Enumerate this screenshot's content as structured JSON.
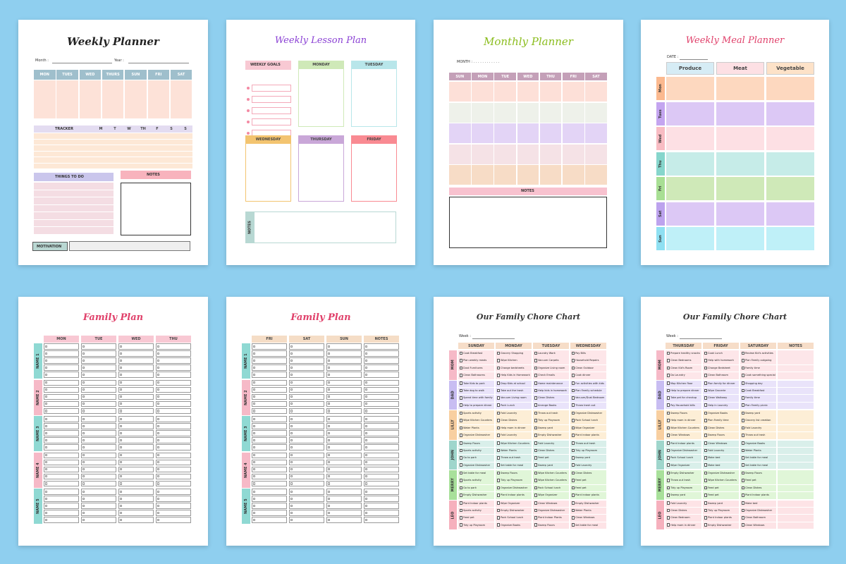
{
  "colors": {
    "bg": "#8fcfef",
    "peach": "#fde2d8",
    "blue": "#9fbfcc",
    "tracker": "#fde8d6",
    "lav": "#d4d0ee",
    "pink": "#f8b3bd",
    "mintgray": "#b8d8d3",
    "green": "#cfe9b8",
    "cyan": "#b8e6ea",
    "gold": "#f3c470",
    "purple": "#c9a7d8",
    "coral": "#f98a92",
    "lilac": "#e6d6ef",
    "lime": "#8bbd1e",
    "mauve": "#c4a0b8",
    "mealpeach": "#fdd8bf",
    "violet": "#dcc8f5",
    "meal_title": "#e0406a",
    "fam_title": "#e0406a",
    "fam_head_pink": "#f8c8d3",
    "fam_head_tan": "#f5ddc6",
    "fam_side_teal": "#8fd9d3",
    "fam_side_pink": "#f6b9c7"
  },
  "weekly_planner": {
    "title": "Weekly Planner",
    "month": "Month :",
    "year": "Year :",
    "days": [
      "MON",
      "TUES",
      "WED",
      "THURS",
      "SUN",
      "FRI",
      "SAT"
    ],
    "tracker": "TRACKER",
    "tracker_days": [
      "M",
      "T",
      "W",
      "TH",
      "F",
      "S",
      "S"
    ],
    "todo": "THINGS TO DO",
    "notes": "NOTES",
    "motivation": "MOTIVATION"
  },
  "lesson_plan": {
    "title": "Weekly Lesson Plan",
    "goals": "WEEKLY GOALS",
    "days": [
      "MONDAY",
      "TUESDAY",
      "WEDNESDAY",
      "THURSDAY",
      "FRIDAY"
    ],
    "notes": "NOTES"
  },
  "monthly_planner": {
    "title": "Monthly Planner",
    "month": "MONTH : . . . . . . . . . . . .",
    "days": [
      "SUN",
      "MON",
      "TUE",
      "WED",
      "THU",
      "FRI",
      "SAT"
    ],
    "notes": "NOTES"
  },
  "meal_planner": {
    "title": "Weekly Meal Planner",
    "date": "DATE :",
    "cols": [
      "Produce",
      "Meat",
      "Vegetable"
    ],
    "days": [
      "Mon",
      "Tues",
      "Wed",
      "Thu",
      "Fri",
      "Sat",
      "Sun"
    ]
  },
  "family_plan_1": {
    "title": "Family Plan",
    "cols": [
      "MON",
      "TUE",
      "WED",
      "THU"
    ],
    "names": [
      "NAME 1",
      "NAME 2",
      "NAME 3",
      "NAME 4",
      "NAME 5"
    ]
  },
  "family_plan_2": {
    "title": "Family Plan",
    "cols": [
      "FRI",
      "SAT",
      "SUN",
      "NOTES"
    ],
    "names": [
      "NAME 1",
      "NAME 2",
      "NAME 3",
      "NAME 4",
      "NAME 5"
    ]
  },
  "chore_1": {
    "title": "Our Family Chore Chart",
    "week": "Week :",
    "cols": [
      "SUNDAY",
      "MONDAY",
      "TUESDAY",
      "WEDNESDAY"
    ],
    "names": [
      "MOM",
      "DAD",
      "LILLY",
      "JOHN",
      "MERRY",
      "LEO"
    ],
    "rows": [
      [
        "Cook Breakfast",
        "Grocery Shopping",
        "Laundry Work",
        "Pay Bills"
      ],
      [
        "Plan weekly meals",
        "Wipe Kitchen",
        "Vacuum Carpets",
        "Household Repairs"
      ],
      [
        "Dust Furnitures",
        "Change bedsheets",
        "Organize Living room",
        "Clean Outdoor"
      ],
      [
        "Clean Bathrooms",
        "Help Kids in Homework",
        "Check Emails",
        "Cook dinner"
      ],
      [
        "Take Kids to park",
        "Drop Kids at school",
        "Home maintenance",
        "Fun activities with kids"
      ],
      [
        "Take dog to walk",
        "Take out the trash",
        "Help kids in homework",
        "Plan Family schedule"
      ],
      [
        "Spend time with family",
        "Vacuum Living room",
        "Clean Dishes",
        "Vacuum/Dust Bedroom"
      ],
      [
        "Help to prepare dinner",
        "Pack Lunch",
        "Arrange Books",
        "Throw trash out"
      ],
      [
        "Sports activity",
        "Fold Laundry",
        "Throw out trash",
        "Organize Dishwasher"
      ],
      [
        "Wipe Kitchen Counters",
        "Clean Dishes",
        "Tidy up Playroom",
        "Pack School lunch"
      ],
      [
        "Water Plants",
        "Help mom in dinner",
        "Sweep yard",
        "Wipe Organizer"
      ],
      [
        "Organize Dishwasher",
        "Fold Laundry",
        "Empty Dishwasher",
        "Plant indoor plants"
      ],
      [
        "Sweep Floors",
        "Wipe Kitchen Counters",
        "Fold Laundry",
        "Throw out trash"
      ],
      [
        "Sports activity",
        "Water Plants",
        "Clean Dishes",
        "Tidy up Playroom"
      ],
      [
        "Go to park",
        "Throw out trash",
        "Feed pet",
        "Sweep yard"
      ],
      [
        "Organize Dishwasher",
        "Set table for meal",
        "Sweep yard",
        "Fold Laundry"
      ],
      [
        "Set table for meal",
        "Sweep Floors",
        "Wipe Kitchen Counters",
        "Clean Dishes"
      ],
      [
        "Sports activity",
        "Tidy up Playroom",
        "Wipe Kitchen Counters",
        "Feed pet"
      ],
      [
        "Go to park",
        "Organize Dishwasher",
        "Pack School lunch",
        "Feed pet"
      ],
      [
        "Empty Dishwasher",
        "Plant Indoor plants",
        "Wipe Organizer",
        "Plant indoor plants"
      ],
      [
        "Plant Indoor plants",
        "Wipe Organizer",
        "Clean Windows",
        "Empty Dishwasher"
      ],
      [
        "Sports activity",
        "Empty Dishwasher",
        "Organize Dishwasher",
        "Water Plants"
      ],
      [
        "Feed pet",
        "Pack School lunch",
        "Plant Indoor Plants",
        "Clean Windows"
      ],
      [
        "Tidy up Playroom",
        "Organize Books",
        "Sweep Floors",
        "Set table for meal"
      ]
    ]
  },
  "chore_2": {
    "title": "Our Family Chore Chart",
    "week": "Week :",
    "cols": [
      "THURSDAY",
      "FRIDAY",
      "SATURDAY",
      "NOTES"
    ],
    "names": [
      "MOM",
      "DAD",
      "LILLY",
      "JOHN",
      "MERRY",
      "LEO"
    ],
    "rows": [
      [
        "Prepare healthy snacks",
        "Cook Lunch",
        "Review Kid's activities"
      ],
      [
        "Clean Bedrooms",
        "Help with homework",
        "Plan Family outgoing"
      ],
      [
        "Clean Kid's Room",
        "Change Bedsheet",
        "Family time"
      ],
      [
        "Do Laundry",
        "Clean Bathroom",
        "Cook something special"
      ],
      [
        "Mop Kitchen floor",
        "Plan family for dinner",
        "Shopping day"
      ],
      [
        "Help to prepare dinner",
        "Wipe Grocerie",
        "Cook Breakfast"
      ],
      [
        "Take pet for checkup",
        "Clean Walkway",
        "Family time"
      ],
      [
        "Pay Household bills",
        "Help in Laundry",
        "Plan Family picnic"
      ],
      [
        "Sweep Floors",
        "Organize Books",
        "Sweep yard"
      ],
      [
        "Help mom in dinner",
        "Plan Family time",
        "Grocery list creation"
      ],
      [
        "Wipe Kitchen Counters",
        "Clean Dishes",
        "Fold Laundry"
      ],
      [
        "Clean Windows",
        "Sweep Floors",
        "Throw out trash"
      ],
      [
        "Plant Indoor plants",
        "Clean Windows",
        "Organize Books"
      ],
      [
        "Organize Dishwasher",
        "Fold Laundry",
        "Water Plants"
      ],
      [
        "Pack School lunch",
        "Make bed",
        "Set table for meal"
      ],
      [
        "Wipe Organizer",
        "Make bed",
        "Set table for meal"
      ],
      [
        "Empty Dishwasher",
        "Organize Dishwasher",
        "Sweep Floors"
      ],
      [
        "Throw out trash",
        "Wipe Kitchen Counters",
        "Feed pet"
      ],
      [
        "Tidy up Playroom",
        "Feed pet",
        "Clean Dishes"
      ],
      [
        "Sweep yard",
        "Feed pet",
        "Plant Indoor plants"
      ],
      [
        "Fold Laundry",
        "Sweep yard",
        "Make bed"
      ],
      [
        "Clean Dishes",
        "Tidy up Playroom",
        "Organize Dishwasher"
      ],
      [
        "Clean Bedroom",
        "Plant Indoor plants",
        "Clean Bathroom"
      ],
      [
        "Help mom in dinner",
        "Empty Dishwasher",
        "Clean Windows"
      ]
    ]
  }
}
